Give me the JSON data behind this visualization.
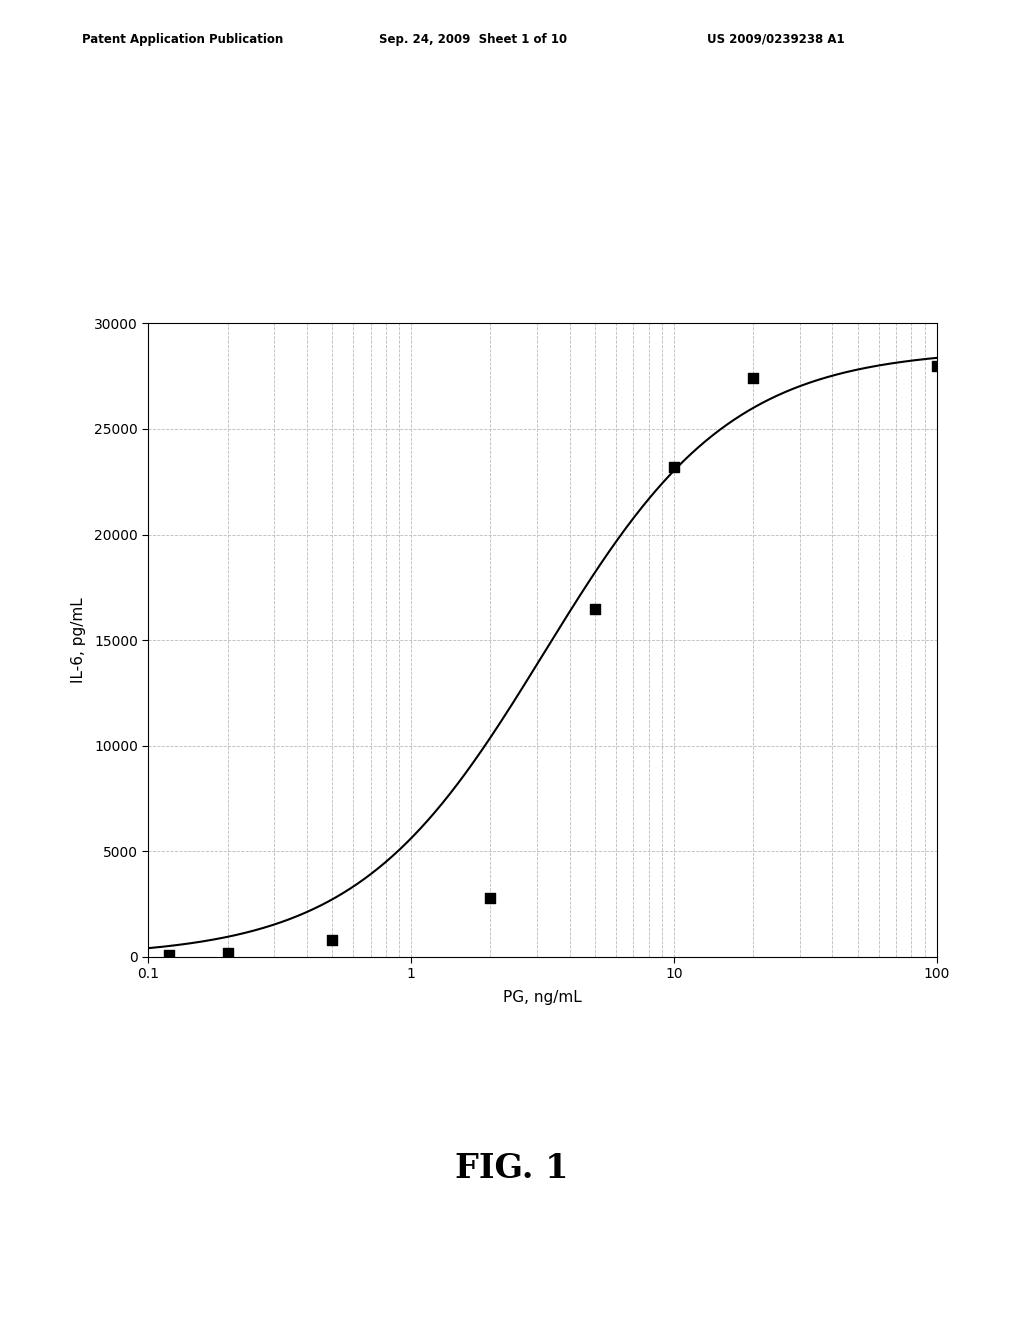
{
  "xlabel": "PG, ng/mL",
  "ylabel": "IL-6, pg/mL",
  "xlim": [
    0.1,
    100
  ],
  "ylim": [
    0,
    30000
  ],
  "yticks": [
    0,
    5000,
    10000,
    15000,
    20000,
    25000,
    30000
  ],
  "data_points_x": [
    0.12,
    0.2,
    0.5,
    2.0,
    5.0,
    10.0,
    20.0,
    100.0
  ],
  "data_points_y": [
    100,
    200,
    800,
    2800,
    16500,
    23200,
    27400,
    28000
  ],
  "background_color": "#ffffff",
  "line_color": "#000000",
  "marker_color": "#000000",
  "grid_color": "#bbbbbb",
  "header_left": "Patent Application Publication",
  "header_center": "Sep. 24, 2009  Sheet 1 of 10",
  "header_right": "US 2009/0239238 A1",
  "fig_label": "FIG. 1",
  "sigmoid_L": 28800,
  "sigmoid_k": 2.8,
  "sigmoid_x0": 3.2
}
